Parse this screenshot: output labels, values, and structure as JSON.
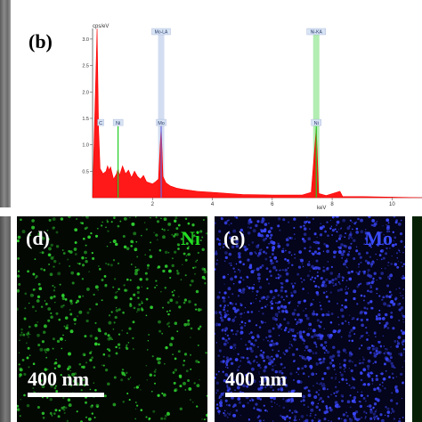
{
  "panel_b": {
    "label": "(b)",
    "chart_data": {
      "type": "line",
      "ylabel": "cps/eV",
      "xlabel": "keV",
      "xlim": [
        0,
        11
      ],
      "ylim": [
        0,
        3.2
      ],
      "x_ticks": [
        "2",
        "4",
        "6",
        "8",
        "10"
      ],
      "y_ticks": [
        "0.5",
        "1.0",
        "1.5",
        "2.0",
        "2.5",
        "3.0"
      ],
      "grid": false,
      "series": [
        {
          "x": [
            0.0,
            0.15,
            0.2,
            0.25,
            0.3,
            0.35,
            0.45,
            0.5,
            0.55,
            0.6,
            0.7,
            0.8,
            0.85,
            0.9,
            1.0,
            1.1,
            1.2,
            1.3,
            1.4,
            1.5,
            1.6,
            1.7,
            1.8,
            1.9,
            2.0,
            2.1,
            2.2,
            2.29,
            2.35,
            2.45,
            2.6,
            2.8,
            3.0,
            3.5,
            4.0,
            5.0,
            6.0,
            7.0,
            7.3,
            7.47,
            7.55,
            7.8,
            8.26,
            8.35,
            9.0,
            10.0,
            11.0
          ],
          "y": [
            0.0,
            3.2,
            1.3,
            0.55,
            0.5,
            0.45,
            0.5,
            0.6,
            0.52,
            0.58,
            0.35,
            0.45,
            0.55,
            0.42,
            0.6,
            0.45,
            0.52,
            0.38,
            0.5,
            0.4,
            0.35,
            0.42,
            0.3,
            0.28,
            0.26,
            0.3,
            0.35,
            1.35,
            0.4,
            0.28,
            0.22,
            0.18,
            0.16,
            0.12,
            0.1,
            0.06,
            0.05,
            0.05,
            0.1,
            1.32,
            0.08,
            0.04,
            0.12,
            0.02,
            0.02,
            0.01,
            0.0
          ]
        }
      ],
      "annotations": [
        {
          "text": "C",
          "x": 0.27
        },
        {
          "text": "Ni",
          "x": 0.85
        },
        {
          "text": "Mo",
          "x": 2.29
        },
        {
          "text": "Ni",
          "x": 7.47
        }
      ],
      "top_annotations": [
        {
          "text": "Mo-LA",
          "x": 2.29
        },
        {
          "text": "Ni-KA",
          "x": 7.47
        }
      ],
      "colors": {
        "spectrum": "#ff0000",
        "ni_marker": "#22cc22",
        "mo_marker": "#6a6adf",
        "ni_band": "#9fe89f",
        "mo_band": "#c8d4ee"
      }
    }
  },
  "panel_d": {
    "letter": "(d)",
    "element": "Ni",
    "scale": "400 nm"
  },
  "panel_e": {
    "letter": "(e)",
    "element": "Mo",
    "scale": "400 nm"
  }
}
